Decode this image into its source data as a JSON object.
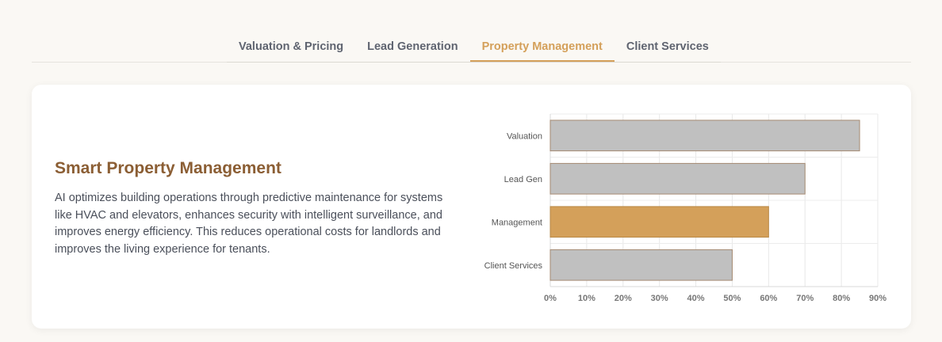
{
  "tabs": [
    {
      "label": "Valuation & Pricing",
      "active": false
    },
    {
      "label": "Lead Generation",
      "active": false
    },
    {
      "label": "Property Management",
      "active": true
    },
    {
      "label": "Client Services",
      "active": false
    }
  ],
  "content": {
    "title": "Smart Property Management",
    "description": "AI optimizes building operations through predictive maintenance for systems like HVAC and elevators, enhances security with intelligent surveillance, and improves energy efficiency. This reduces operational costs for landlords and improves the living experience for tenants."
  },
  "colors": {
    "accent": "#d4a05a",
    "title": "#8b5e34",
    "bar_default": "#c0c0c0",
    "bar_highlight": "#d4a05a"
  },
  "chart_data": {
    "type": "bar",
    "orientation": "horizontal",
    "categories": [
      "Valuation",
      "Lead Gen",
      "Management",
      "Client Services"
    ],
    "values": [
      85,
      70,
      60,
      50
    ],
    "highlight": "Management",
    "xlim": [
      0,
      90
    ],
    "xticks": [
      "0%",
      "10%",
      "20%",
      "30%",
      "40%",
      "50%",
      "60%",
      "70%",
      "80%",
      "90%"
    ],
    "grid": true,
    "title": "",
    "xlabel": "",
    "ylabel": ""
  }
}
